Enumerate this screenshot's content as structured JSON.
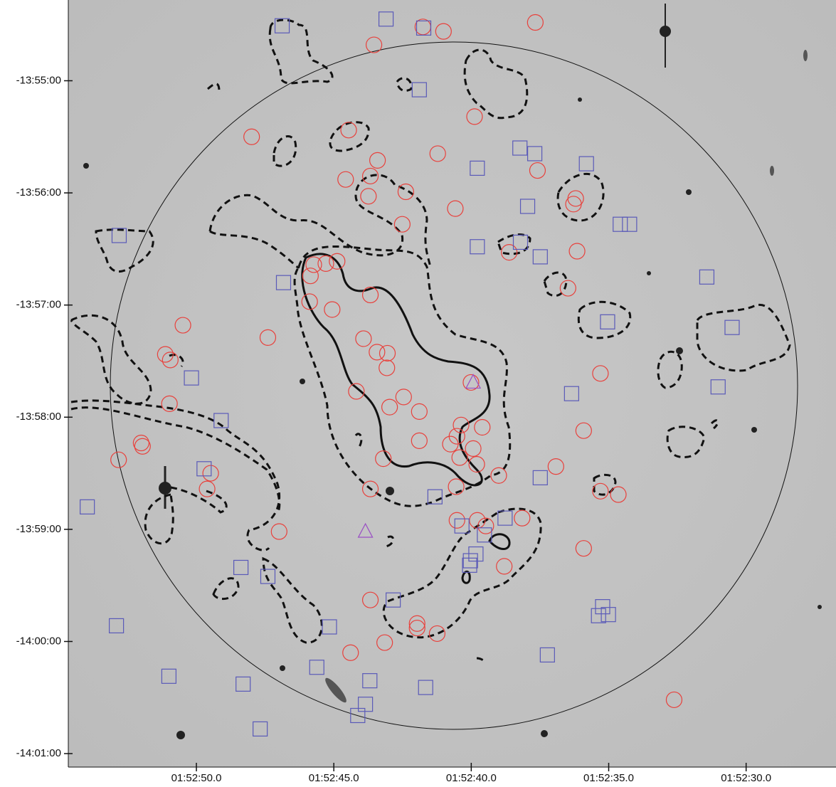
{
  "chart_data": {
    "type": "scatter",
    "xticks": [
      {
        "value": 50,
        "label": "01:52:50.0"
      },
      {
        "value": 45,
        "label": "01:52:45.0"
      },
      {
        "value": 40,
        "label": "01:52:40.0"
      },
      {
        "value": 35,
        "label": "01:52:35.0"
      },
      {
        "value": 30,
        "label": "01:52:30.0"
      }
    ],
    "yticks": [
      {
        "value": -835,
        "label": "-13:55:00"
      },
      {
        "value": -836,
        "label": "-13:56:00"
      },
      {
        "value": -837,
        "label": "-13:57:00"
      },
      {
        "value": -838,
        "label": "-13:58:00"
      },
      {
        "value": -839,
        "label": "-13:59:00"
      },
      {
        "value": -840,
        "label": "-14:00:00"
      },
      {
        "value": -841,
        "label": "-14:01:00"
      }
    ],
    "xlim": [
      54.66,
      26.73
    ],
    "ylim": [
      -841.12,
      -834.28
    ],
    "series": [
      {
        "marker": "circle",
        "color": "#e8413c",
        "x": [
          37.67,
          41.76,
          41.01,
          43.54,
          39.88,
          44.46,
          47.99,
          41.22,
          43.41,
          37.59,
          44.57,
          43.67,
          42.38,
          43.74,
          40.58,
          36.2,
          36.28,
          42.51,
          36.15,
          38.62,
          45.73,
          45.29,
          44.88,
          45.85,
          36.48,
          45.06,
          45.88,
          43.67,
          50.49,
          47.4,
          43.92,
          43.05,
          43.43,
          51.13,
          50.95,
          43.07,
          35.3,
          40.01,
          44.18,
          50.98,
          42.46,
          42.97,
          41.89,
          35.91,
          52.01,
          51.96,
          40.37,
          39.6,
          40.52,
          41.89,
          40.76,
          39.93,
          40.42,
          39.8,
          43.2,
          52.83,
          49.48,
          49.61,
          36.92,
          39.0,
          40.55,
          43.67,
          35.3,
          34.65,
          46.99,
          38.15,
          40.52,
          39.78,
          39.47,
          35.91,
          38.8,
          43.67,
          41.97,
          41.97,
          41.24,
          43.15,
          44.39,
          32.62
        ],
        "y": [
          -834.48,
          -834.52,
          -834.56,
          -834.68,
          -835.32,
          -835.44,
          -835.5,
          -835.65,
          -835.71,
          -835.8,
          -835.88,
          -835.85,
          -835.99,
          -836.03,
          -836.14,
          -836.05,
          -836.1,
          -836.28,
          -836.52,
          -836.53,
          -836.64,
          -836.63,
          -836.61,
          -836.74,
          -836.85,
          -837.04,
          -836.97,
          -836.91,
          -837.18,
          -837.29,
          -837.3,
          -837.43,
          -837.42,
          -837.44,
          -837.49,
          -837.56,
          -837.61,
          -837.69,
          -837.77,
          -837.88,
          -837.82,
          -837.91,
          -837.95,
          -838.12,
          -838.23,
          -838.26,
          -838.07,
          -838.09,
          -838.17,
          -838.21,
          -838.24,
          -838.28,
          -838.36,
          -838.42,
          -838.37,
          -838.38,
          -838.5,
          -838.64,
          -838.44,
          -838.52,
          -838.62,
          -838.64,
          -838.66,
          -838.69,
          -839.02,
          -838.9,
          -838.92,
          -838.92,
          -838.97,
          -839.17,
          -839.33,
          -839.63,
          -839.84,
          -839.88,
          -839.93,
          -840.01,
          -840.1,
          -840.52
        ]
      },
      {
        "marker": "square",
        "color": "#5a5ab8",
        "x": [
          46.88,
          43.1,
          41.73,
          41.89,
          38.23,
          37.69,
          39.78,
          35.81,
          37.95,
          52.81,
          39.78,
          38.21,
          37.49,
          34.58,
          34.24,
          31.43,
          46.83,
          35.04,
          30.51,
          50.18,
          36.35,
          31.02,
          49.1,
          49.72,
          37.49,
          41.32,
          53.97,
          40.34,
          38.77,
          39.52,
          39.83,
          40.03,
          40.06,
          48.38,
          47.4,
          42.84,
          35.22,
          35.37,
          35.01,
          52.91,
          45.16,
          37.23,
          45.62,
          51.0,
          48.3,
          43.69,
          41.66,
          43.85,
          44.13,
          47.68
        ],
        "y": [
          -834.51,
          -834.45,
          -834.53,
          -835.08,
          -835.6,
          -835.65,
          -835.78,
          -835.74,
          -836.12,
          -836.38,
          -836.48,
          -836.44,
          -836.57,
          -836.28,
          -836.28,
          -836.75,
          -836.8,
          -837.15,
          -837.2,
          -837.65,
          -837.79,
          -837.73,
          -838.03,
          -838.46,
          -838.54,
          -838.71,
          -838.8,
          -838.97,
          -838.9,
          -839.05,
          -839.22,
          -839.28,
          -839.32,
          -839.34,
          -839.42,
          -839.63,
          -839.69,
          -839.77,
          -839.76,
          -839.86,
          -839.87,
          -840.12,
          -840.23,
          -840.31,
          -840.38,
          -840.35,
          -840.41,
          -840.56,
          -840.66,
          -840.78
        ]
      },
      {
        "marker": "triangle",
        "color": "#9a4fc4",
        "x": [
          39.93,
          43.85
        ],
        "y": [
          -837.69,
          -839.02
        ]
      }
    ]
  }
}
